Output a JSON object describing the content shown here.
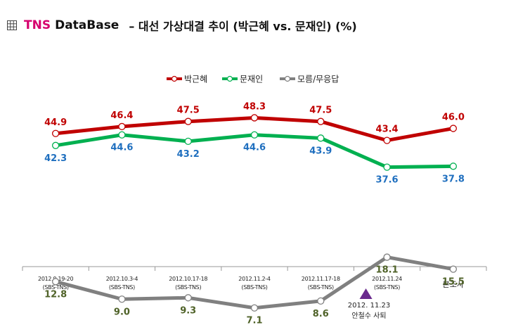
{
  "header": {
    "brand": "TNS",
    "db": "DataBase",
    "title": "– 대선 가상대결 추이 (박근혜 vs. 문재인) (%)"
  },
  "chart_data": {
    "type": "line",
    "categories": [
      [
        "2012.9.19-20",
        "(SBS-TNS)"
      ],
      [
        "2012.10.3-4",
        "(SBS-TNS)"
      ],
      [
        "2012.10.17-18",
        "(SBS-TNS)"
      ],
      [
        "2012.11.2-4",
        "(SBS-TNS)"
      ],
      [
        "2012.11.17-18",
        "(SBS-TNS)"
      ],
      [
        "2012.11.24",
        "(SBS-TNS)"
      ],
      [
        "본조사"
      ]
    ],
    "series": [
      {
        "name": "박근혜",
        "color": "#c00000",
        "label_color": "#c00000",
        "label_pos": "above",
        "values": [
          44.9,
          46.4,
          47.5,
          48.3,
          47.5,
          43.4,
          46.0
        ],
        "labels": [
          "44.9",
          "46.4",
          "47.5",
          "48.3",
          "47.5",
          "43.4",
          "46.0"
        ]
      },
      {
        "name": "문재인",
        "color": "#00b050",
        "label_color": "#1f6fbf",
        "label_pos": "below",
        "values": [
          42.3,
          44.6,
          43.2,
          44.6,
          43.9,
          37.6,
          37.8
        ],
        "labels": [
          "42.3",
          "44.6",
          "43.2",
          "44.6",
          "43.9",
          "37.6",
          "37.8"
        ]
      },
      {
        "name": "모름/무응답",
        "color": "#808080",
        "label_color": "#4f6228",
        "label_pos": "below",
        "values": [
          12.8,
          9.0,
          9.3,
          7.1,
          8.6,
          18.1,
          15.5
        ],
        "labels": [
          "12.8",
          "9.0",
          "9.3",
          "7.1",
          "8.6",
          "18.1",
          "15.5"
        ]
      }
    ],
    "legend_position": "top-center",
    "grid": false,
    "annotation": {
      "category_index": 5,
      "date": "2012. 11.23",
      "text": "안철수 사퇴",
      "marker_color": "#6a2a8e"
    }
  }
}
